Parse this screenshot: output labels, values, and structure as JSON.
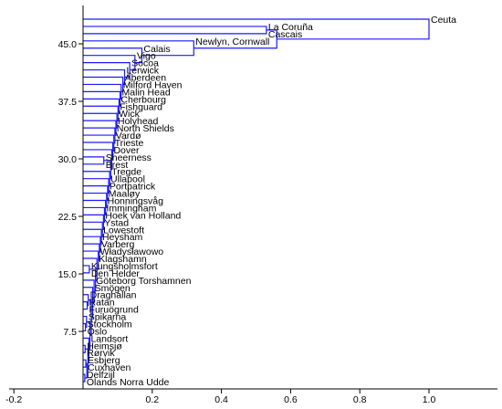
{
  "chart_data": {
    "type": "dendrogram",
    "title": "",
    "xlabel": "",
    "ylabel": "",
    "xlim": [
      -0.2,
      1.2
    ],
    "ylim": [
      0,
      50
    ],
    "x_ticks": [
      -0.2,
      0.2,
      0.4,
      0.6,
      0.8,
      1.0
    ],
    "x_tick_labels": [
      "-0.2",
      "0.2",
      "0.4",
      "0.6",
      "0.8",
      "1.0"
    ],
    "y_ticks": [
      7.5,
      15,
      22.5,
      30,
      37.5,
      45
    ],
    "y_tick_labels": [
      "7.5",
      "15.0",
      "22.5",
      "30.0",
      "37.5",
      "45.0"
    ],
    "grid": false,
    "colors": {
      "tree": "#1a1aff",
      "axis": "#000000"
    },
    "leaves": [
      {
        "name": "Ölands Norra Udde",
        "x": 0.0,
        "y": 1
      },
      {
        "name": "Delfzijl",
        "x": 0.0,
        "y": 2
      },
      {
        "name": "Cuxhaven",
        "x": 0.0,
        "y": 3
      },
      {
        "name": "Esbjerg",
        "x": 0.0,
        "y": 4
      },
      {
        "name": "Rørvik",
        "x": 0.0,
        "y": 5
      },
      {
        "name": "Heimsjø",
        "x": 0.0,
        "y": 6
      },
      {
        "name": "Landsort",
        "x": 0.0,
        "y": 7
      },
      {
        "name": "Oslo",
        "x": 0.0,
        "y": 8
      },
      {
        "name": "Stockholm",
        "x": 0.0,
        "y": 9
      },
      {
        "name": "Spikarna",
        "x": 0.0,
        "y": 10
      },
      {
        "name": "Furuögrund",
        "x": 0.0,
        "y": 11
      },
      {
        "name": "Ratan",
        "x": 0.0,
        "y": 12
      },
      {
        "name": "Draghallan",
        "x": 0.0,
        "y": 13
      },
      {
        "name": "Smögen",
        "x": 0.0,
        "y": 14
      },
      {
        "name": "Göteborg Torshamnen",
        "x": 0.0,
        "y": 15
      },
      {
        "name": "Den Helder",
        "x": 0.0,
        "y": 16
      },
      {
        "name": "Kungsholmsfort",
        "x": 0.0,
        "y": 17
      },
      {
        "name": "Klagshamn",
        "x": 0.0,
        "y": 18
      },
      {
        "name": "Władysławowo",
        "x": 0.0,
        "y": 19
      },
      {
        "name": "Varberg",
        "x": 0.0,
        "y": 20
      },
      {
        "name": "Heysham",
        "x": 0.0,
        "y": 21
      },
      {
        "name": "Lowestoft",
        "x": 0.0,
        "y": 22
      },
      {
        "name": "Ystad",
        "x": 0.0,
        "y": 23
      },
      {
        "name": "Hoek van Holland",
        "x": 0.0,
        "y": 24
      },
      {
        "name": "Immingham",
        "x": 0.0,
        "y": 25
      },
      {
        "name": "Honningsvåg",
        "x": 0.0,
        "y": 26
      },
      {
        "name": "Maaløy",
        "x": 0.0,
        "y": 27
      },
      {
        "name": "Portpatrick",
        "x": 0.0,
        "y": 28
      },
      {
        "name": "Ullapool",
        "x": 0.0,
        "y": 29
      },
      {
        "name": "Tregde",
        "x": 0.0,
        "y": 30
      },
      {
        "name": "Brest",
        "x": 0.0,
        "y": 31
      },
      {
        "name": "Sheerness",
        "x": 0.0,
        "y": 32
      },
      {
        "name": "Dover",
        "x": 0.0,
        "y": 33
      },
      {
        "name": "Trieste",
        "x": 0.0,
        "y": 34
      },
      {
        "name": "Vardø",
        "x": 0.0,
        "y": 35
      },
      {
        "name": "North Shields",
        "x": 0.0,
        "y": 36
      },
      {
        "name": "Holyhead",
        "x": 0.0,
        "y": 37
      },
      {
        "name": "Wick",
        "x": 0.0,
        "y": 38
      },
      {
        "name": "Fishguard",
        "x": 0.0,
        "y": 39
      },
      {
        "name": "Cherbourg",
        "x": 0.0,
        "y": 40
      },
      {
        "name": "Malin Head",
        "x": 0.0,
        "y": 41
      },
      {
        "name": "Milford Haven",
        "x": 0.0,
        "y": 42
      },
      {
        "name": "Aberdeen",
        "x": 0.0,
        "y": 43
      },
      {
        "name": "Lerwick",
        "x": 0.0,
        "y": 44
      },
      {
        "name": "Socoa",
        "x": 0.0,
        "y": 45
      },
      {
        "name": "Vigo",
        "x": 0.0,
        "y": 46
      },
      {
        "name": "Calais",
        "x": 0.0,
        "y": 47
      },
      {
        "name": "Newlyn, Cornwall",
        "x": 0.0,
        "y": 48
      },
      {
        "name": "Cascais",
        "x": 0.0,
        "y": 49
      },
      {
        "name": "La Coruña",
        "x": 0.0,
        "y": 50
      },
      {
        "name": "Ceuta",
        "x": 0.0,
        "y": 51
      }
    ],
    "merges": [
      {
        "height": 0.005,
        "a": "Ölands Norra Udde",
        "b": "Delfzijl"
      },
      {
        "height": 0.008,
        "a": "Cuxhaven",
        "b": "Esbjerg"
      },
      {
        "height": 0.011,
        "a": 1,
        "b": 2
      },
      {
        "height": 0.006,
        "a": "Rørvik",
        "b": "Heimsjø"
      },
      {
        "height": 0.014,
        "a": 3,
        "b": 4
      },
      {
        "height": 0.017,
        "a": 5,
        "b": "Landsort"
      },
      {
        "height": 0.007,
        "a": "Oslo",
        "b": "Stockholm"
      },
      {
        "height": 0.01,
        "a": 7,
        "b": "Spikarna"
      },
      {
        "height": 0.02,
        "a": 6,
        "b": 8
      },
      {
        "height": 0.012,
        "a": "Furuögrund",
        "b": "Ratan"
      },
      {
        "height": 0.015,
        "a": 10,
        "b": "Draghallan"
      },
      {
        "height": 0.024,
        "a": 9,
        "b": 11
      },
      {
        "height": 0.028,
        "a": 12,
        "b": "Smögen"
      },
      {
        "height": 0.032,
        "a": 13,
        "b": "Göteborg Torshamnen"
      },
      {
        "height": 0.018,
        "a": "Den Helder",
        "b": "Kungsholmsfort"
      },
      {
        "height": 0.036,
        "a": 14,
        "b": 15
      },
      {
        "height": 0.04,
        "a": 16,
        "b": "Klagshamn"
      },
      {
        "height": 0.044,
        "a": 17,
        "b": "Władysławowo"
      },
      {
        "height": 0.047,
        "a": 18,
        "b": "Varberg"
      },
      {
        "height": 0.05,
        "a": 19,
        "b": "Heysham"
      },
      {
        "height": 0.053,
        "a": 20,
        "b": "Lowestoft"
      },
      {
        "height": 0.056,
        "a": 21,
        "b": "Ystad"
      },
      {
        "height": 0.059,
        "a": 22,
        "b": "Hoek van Holland"
      },
      {
        "height": 0.062,
        "a": 23,
        "b": "Immingham"
      },
      {
        "height": 0.065,
        "a": 24,
        "b": "Honningsvåg"
      },
      {
        "height": 0.068,
        "a": 25,
        "b": "Maaløy"
      },
      {
        "height": 0.071,
        "a": 26,
        "b": "Portpatrick"
      },
      {
        "height": 0.074,
        "a": 27,
        "b": "Ullapool"
      },
      {
        "height": 0.077,
        "a": 28,
        "b": "Tregde"
      },
      {
        "height": 0.06,
        "a": "Brest",
        "b": "Sheerness"
      },
      {
        "height": 0.08,
        "a": 29,
        "b": 30
      },
      {
        "height": 0.083,
        "a": 31,
        "b": "Dover"
      },
      {
        "height": 0.086,
        "a": 32,
        "b": "Trieste"
      },
      {
        "height": 0.089,
        "a": 33,
        "b": "Vardø"
      },
      {
        "height": 0.092,
        "a": 34,
        "b": "North Shields"
      },
      {
        "height": 0.095,
        "a": 35,
        "b": "Holyhead"
      },
      {
        "height": 0.098,
        "a": 36,
        "b": "Wick"
      },
      {
        "height": 0.101,
        "a": 37,
        "b": "Fishguard"
      },
      {
        "height": 0.104,
        "a": 38,
        "b": "Cherbourg"
      },
      {
        "height": 0.107,
        "a": 39,
        "b": "Malin Head"
      },
      {
        "height": 0.11,
        "a": 40,
        "b": "Milford Haven"
      },
      {
        "height": 0.115,
        "a": 41,
        "b": "Aberdeen"
      },
      {
        "height": 0.12,
        "a": 42,
        "b": "Lerwick"
      },
      {
        "height": 0.135,
        "a": 43,
        "b": "Socoa"
      },
      {
        "height": 0.15,
        "a": 44,
        "b": "Vigo"
      },
      {
        "height": 0.17,
        "a": 45,
        "b": "Calais"
      },
      {
        "height": 0.32,
        "a": 46,
        "b": "Newlyn, Cornwall"
      },
      {
        "height": 0.53,
        "a": "Cascais",
        "b": "La Coruña"
      },
      {
        "height": 0.56,
        "a": 47,
        "b": 48
      },
      {
        "height": 1.0,
        "a": 49,
        "b": "Ceuta"
      }
    ]
  }
}
